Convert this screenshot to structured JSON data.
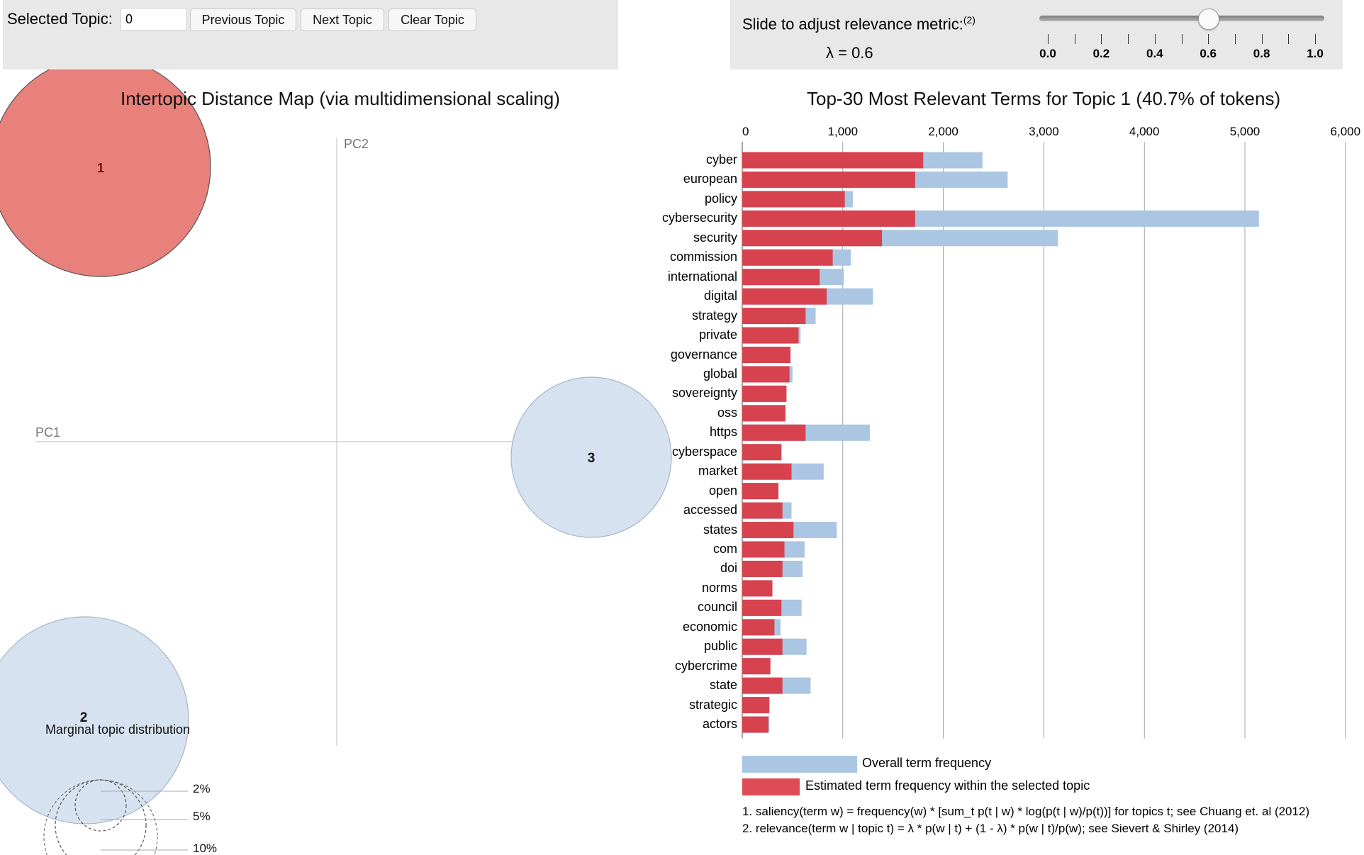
{
  "controls": {
    "selected_topic_label": "Selected Topic:",
    "selected_topic_value": "0",
    "prev_button": "Previous Topic",
    "next_button": "Next Topic",
    "clear_button": "Clear Topic"
  },
  "relevance": {
    "label": "Slide to adjust relevance metric:",
    "footnote_mark": "(2)",
    "lambda_text": "λ = 0.6",
    "lambda_value": 0.6,
    "min": 0,
    "max": 1,
    "tick_labels": [
      "0.0",
      "0.2",
      "0.4",
      "0.6",
      "0.8",
      "1.0"
    ]
  },
  "left_panel": {
    "title": "Intertopic Distance Map (via multidimensional scaling)",
    "axis_pc1": "PC1",
    "axis_pc2": "PC2",
    "topics": [
      {
        "label": "1",
        "selected": true,
        "color": "#e8807b"
      },
      {
        "label": "2",
        "selected": false,
        "color": "#d6e2ef"
      },
      {
        "label": "3",
        "selected": false,
        "color": "#d6e2ef"
      }
    ],
    "marginal_title": "Marginal topic distribution",
    "marginal_labels": [
      "2%",
      "5%",
      "10%"
    ]
  },
  "chart_data": {
    "type": "bar",
    "title": "Top-30 Most Relevant Terms for Topic 1 (40.7% of tokens)",
    "x_ticks": [
      "0",
      "1,000",
      "2,000",
      "3,000",
      "4,000",
      "5,000",
      "6,000"
    ],
    "xlim": [
      0,
      6000
    ],
    "categories": [
      "cyber",
      "european",
      "policy",
      "cybersecurity",
      "security",
      "commission",
      "international",
      "digital",
      "strategy",
      "private",
      "governance",
      "global",
      "sovereignty",
      "oss",
      "https",
      "cyberspace",
      "market",
      "open",
      "accessed",
      "states",
      "com",
      "doi",
      "norms",
      "council",
      "economic",
      "public",
      "cybercrime",
      "state",
      "strategic",
      "actors"
    ],
    "series": [
      {
        "name": "Overall term frequency",
        "color": "#aac6e2",
        "values": [
          2390,
          2640,
          1100,
          5140,
          3140,
          1080,
          1010,
          1300,
          730,
          580,
          480,
          500,
          440,
          430,
          1270,
          390,
          810,
          360,
          490,
          940,
          620,
          600,
          300,
          590,
          380,
          640,
          280,
          680,
          270,
          270
        ]
      },
      {
        "name": "Estimated term frequency within the selected topic",
        "color": "#d6434f",
        "values": [
          1800,
          1720,
          1020,
          1720,
          1390,
          900,
          770,
          840,
          630,
          560,
          480,
          470,
          440,
          430,
          630,
          390,
          490,
          360,
          400,
          510,
          420,
          400,
          300,
          390,
          320,
          400,
          280,
          400,
          270,
          260
        ]
      }
    ]
  },
  "legend": {
    "overall": "Overall term frequency",
    "estimated": "Estimated term frequency within the selected topic"
  },
  "notes": {
    "saliency": "1. saliency(term w) = frequency(w) * [sum_t p(t | w) * log(p(t | w)/p(t))] for topics t; see Chuang et. al (2012)",
    "relevance": "2. relevance(term w | topic t) = λ * p(w | t) + (1 - λ) * p(w | t)/p(w); see Sievert & Shirley (2014)"
  }
}
